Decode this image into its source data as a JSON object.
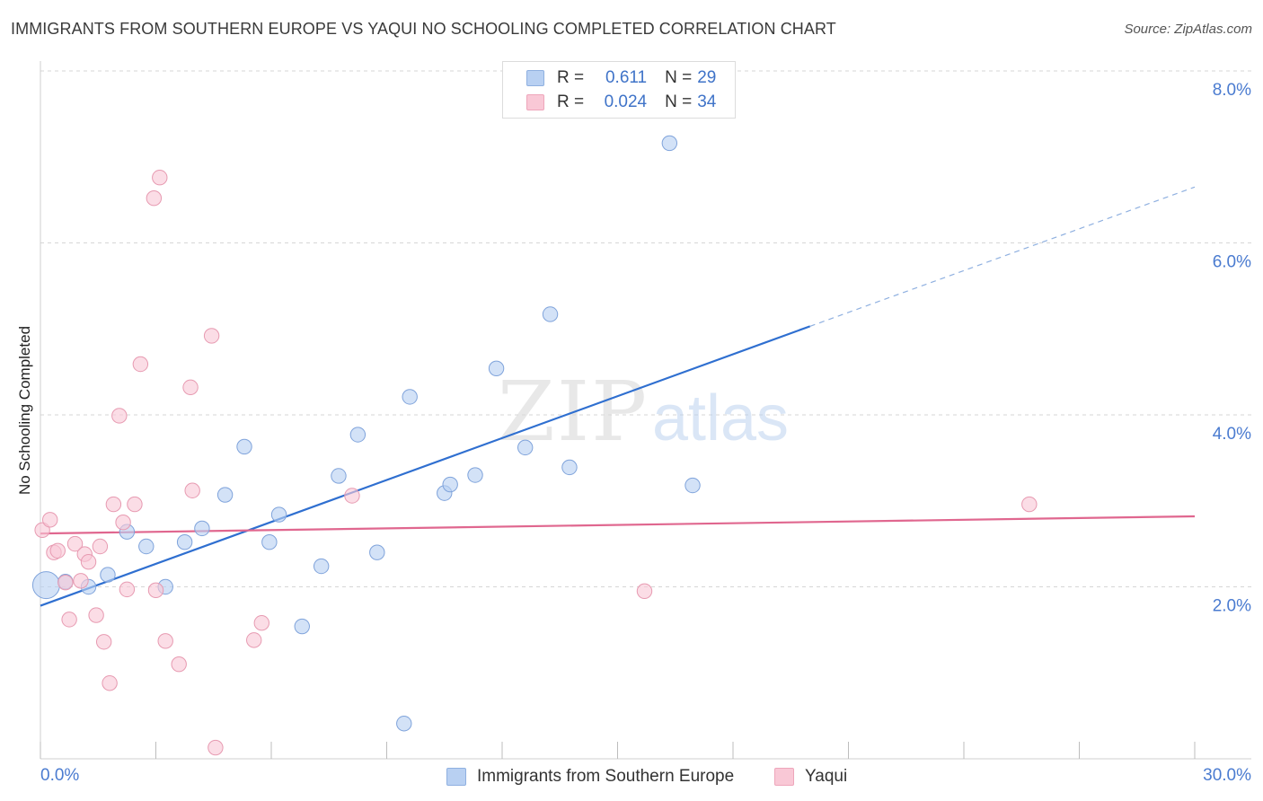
{
  "header": {
    "title": "IMMIGRANTS FROM SOUTHERN EUROPE VS YAQUI NO SCHOOLING COMPLETED CORRELATION CHART",
    "source": "Source: ZipAtlas.com"
  },
  "legend_top": {
    "rows": [
      {
        "r_label": "R =",
        "r_value": "0.611",
        "n_label": "N =",
        "n_value": "29",
        "color": "#b8d0f2"
      },
      {
        "r_label": "R =",
        "r_value": "0.024",
        "n_label": "N =",
        "n_value": "34",
        "color": "#f9c8d6"
      }
    ]
  },
  "legend_bottom": {
    "items": [
      {
        "label": "Immigrants from Southern Europe",
        "color": "#b8d0f2"
      },
      {
        "label": "Yaqui",
        "color": "#f9c8d6"
      }
    ]
  },
  "watermark": {
    "zip": "ZIP",
    "atlas": "atlas"
  },
  "chart_data": {
    "type": "scatter",
    "title": "IMMIGRANTS FROM SOUTHERN EUROPE VS YAQUI NO SCHOOLING COMPLETED CORRELATION CHART",
    "xlabel": "",
    "ylabel": "No Schooling Completed",
    "xlim": [
      0,
      30
    ],
    "ylim": [
      0,
      8.2
    ],
    "x_tick_labels": [
      "0.0%",
      "30.0%"
    ],
    "y_ticks": [
      2,
      4,
      6,
      8
    ],
    "y_tick_labels": [
      "2.0%",
      "4.0%",
      "6.0%",
      "8.0%"
    ],
    "grid": true,
    "series": [
      {
        "name": "Immigrants from Southern Europe",
        "color": "#b8d0f2",
        "stroke": "#7fa3db",
        "trend": {
          "x0": 0.0,
          "y0": 1.78,
          "x1": 20.0,
          "y1": 5.03,
          "dash_to_x": 30.0,
          "dash_to_y": 6.65,
          "color": "#2f6fd0"
        },
        "points": [
          {
            "x": 0.15,
            "y": 2.02,
            "big": true
          },
          {
            "x": 0.65,
            "y": 2.06
          },
          {
            "x": 1.25,
            "y": 2.0
          },
          {
            "x": 1.75,
            "y": 2.14
          },
          {
            "x": 2.25,
            "y": 2.64
          },
          {
            "x": 2.75,
            "y": 2.47
          },
          {
            "x": 3.25,
            "y": 2.0
          },
          {
            "x": 3.75,
            "y": 2.52
          },
          {
            "x": 4.2,
            "y": 2.68
          },
          {
            "x": 4.8,
            "y": 3.07
          },
          {
            "x": 5.3,
            "y": 3.63
          },
          {
            "x": 5.95,
            "y": 2.52
          },
          {
            "x": 6.2,
            "y": 2.84
          },
          {
            "x": 6.8,
            "y": 1.54
          },
          {
            "x": 7.3,
            "y": 2.24
          },
          {
            "x": 7.75,
            "y": 3.29
          },
          {
            "x": 8.25,
            "y": 3.77
          },
          {
            "x": 8.75,
            "y": 2.4
          },
          {
            "x": 9.45,
            "y": 0.41
          },
          {
            "x": 9.6,
            "y": 4.21
          },
          {
            "x": 10.5,
            "y": 3.09
          },
          {
            "x": 10.65,
            "y": 3.19
          },
          {
            "x": 11.3,
            "y": 3.3
          },
          {
            "x": 11.85,
            "y": 4.54
          },
          {
            "x": 12.6,
            "y": 3.62
          },
          {
            "x": 13.25,
            "y": 5.17
          },
          {
            "x": 13.75,
            "y": 3.39
          },
          {
            "x": 16.35,
            "y": 7.16
          },
          {
            "x": 16.95,
            "y": 3.18
          }
        ]
      },
      {
        "name": "Yaqui",
        "color": "#f9c8d6",
        "stroke": "#e79ab1",
        "trend": {
          "x0": 0.0,
          "y0": 2.62,
          "x1": 30.0,
          "y1": 2.82,
          "color": "#e0678f"
        },
        "points": [
          {
            "x": 0.05,
            "y": 2.66
          },
          {
            "x": 0.25,
            "y": 2.78
          },
          {
            "x": 0.35,
            "y": 2.4
          },
          {
            "x": 0.45,
            "y": 2.42
          },
          {
            "x": 0.65,
            "y": 2.05
          },
          {
            "x": 0.75,
            "y": 1.62
          },
          {
            "x": 0.9,
            "y": 2.5
          },
          {
            "x": 1.05,
            "y": 2.07
          },
          {
            "x": 1.15,
            "y": 2.38
          },
          {
            "x": 1.25,
            "y": 2.29
          },
          {
            "x": 1.45,
            "y": 1.67
          },
          {
            "x": 1.55,
            "y": 2.47
          },
          {
            "x": 1.65,
            "y": 1.36
          },
          {
            "x": 1.8,
            "y": 0.88
          },
          {
            "x": 1.9,
            "y": 2.96
          },
          {
            "x": 2.05,
            "y": 3.99
          },
          {
            "x": 2.15,
            "y": 2.75
          },
          {
            "x": 2.25,
            "y": 1.97
          },
          {
            "x": 2.45,
            "y": 2.96
          },
          {
            "x": 2.6,
            "y": 4.59
          },
          {
            "x": 2.95,
            "y": 6.52
          },
          {
            "x": 3.0,
            "y": 1.96
          },
          {
            "x": 3.1,
            "y": 6.76
          },
          {
            "x": 3.25,
            "y": 1.37
          },
          {
            "x": 3.6,
            "y": 1.1
          },
          {
            "x": 3.9,
            "y": 4.32
          },
          {
            "x": 3.95,
            "y": 3.12
          },
          {
            "x": 4.45,
            "y": 4.92
          },
          {
            "x": 4.55,
            "y": 0.13
          },
          {
            "x": 5.55,
            "y": 1.38
          },
          {
            "x": 5.75,
            "y": 1.58
          },
          {
            "x": 8.1,
            "y": 3.06
          },
          {
            "x": 15.7,
            "y": 1.95
          },
          {
            "x": 25.7,
            "y": 2.96
          }
        ]
      }
    ]
  }
}
